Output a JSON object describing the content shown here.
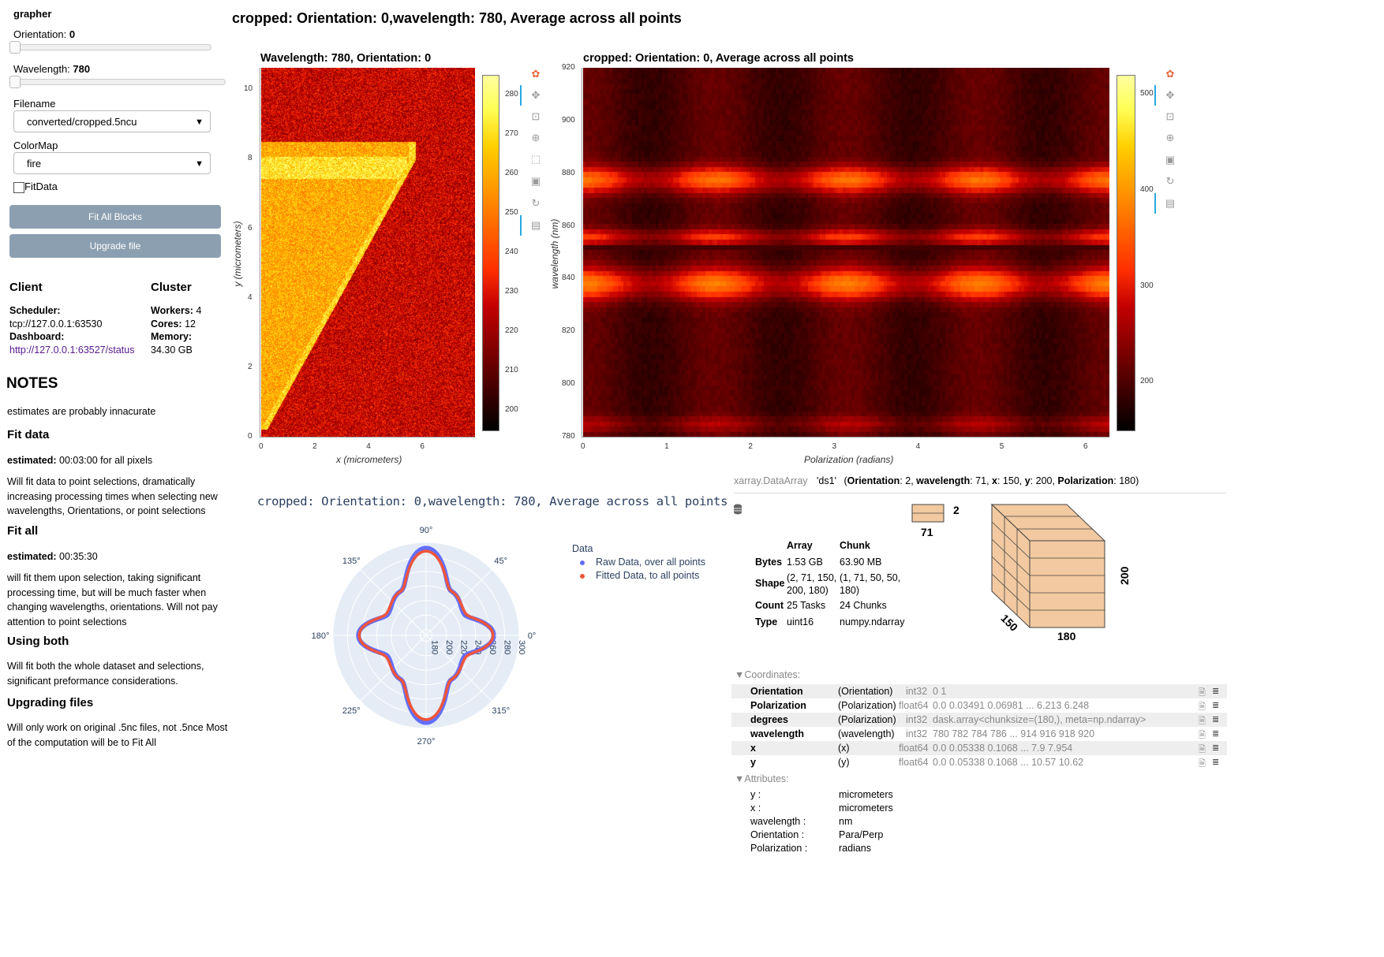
{
  "sidebar": {
    "title": "grapher",
    "orientation_label": "Orientation:",
    "orientation_value": "0",
    "wavelength_label": "Wavelength:",
    "wavelength_value": "780",
    "filename_label": "Filename",
    "filename_value": "converted/cropped.5ncu",
    "colormap_label": "ColorMap",
    "colormap_value": "fire",
    "fitdata_label": "FitData",
    "fit_all_button": "Fit All Blocks",
    "upgrade_button": "Upgrade file"
  },
  "client": {
    "client_header": "Client",
    "cluster_header": "Cluster",
    "scheduler_label": "Scheduler:",
    "scheduler_value": "tcp://127.0.0.1:63530",
    "dashboard_label": "Dashboard:",
    "dashboard_link": "http://127.0.0.1:63527/status",
    "workers_label": "Workers:",
    "workers_value": "4",
    "cores_label": "Cores:",
    "cores_value": "12",
    "memory_label": "Memory:",
    "memory_value": "34.30 GB"
  },
  "notes": {
    "heading": "NOTES",
    "intro": "estimates are probably innacurate",
    "fit_data_h": "Fit data",
    "fit_data_est_label": "estimated:",
    "fit_data_est": "00:03:00 for all pixels",
    "fit_data_text": "Will fit data to point selections, dramatically increasing processing times when selecting new wavelengths, Orientations, or point selections",
    "fit_all_h": "Fit all",
    "fit_all_est_label": "estimated:",
    "fit_all_est": "00:35:30",
    "fit_all_text": "will fit them upon selection, taking significant processing time, but will be much faster when changing wavelengths, orientations. Will not pay attention to point selections",
    "using_both_h": "Using both",
    "using_both_text": "Will fit both the whole dataset and selections, significant preformance considerations.",
    "upgrading_h": "Upgrading files",
    "upgrading_text": "Will only work on original .5nc files, not .5nce Most of the computation will be to Fit All"
  },
  "main_title": "cropped: Orientation: 0,wavelength: 780, Average across all points",
  "plot1": {
    "title": "Wavelength: 780, Orientation: 0",
    "xlabel": "x (micrometers)",
    "ylabel": "y (micrometers)",
    "xticks": [
      "0",
      "2",
      "4",
      "6"
    ],
    "yticks": [
      "0",
      "2",
      "4",
      "6",
      "8",
      "10"
    ],
    "cbar_ticks": [
      "200",
      "210",
      "220",
      "230",
      "240",
      "250",
      "260",
      "270",
      "280"
    ]
  },
  "plot2": {
    "title": "cropped: Orientation: 0, Average across all points",
    "xlabel": "Polarization (radians)",
    "ylabel": "wavelength (nm)",
    "xticks": [
      "0",
      "1",
      "2",
      "3",
      "4",
      "5",
      "6"
    ],
    "yticks": [
      "780",
      "800",
      "820",
      "840",
      "860",
      "880",
      "900",
      "920"
    ],
    "cbar_ticks": [
      "200",
      "300",
      "400",
      "500"
    ]
  },
  "polar": {
    "title": "cropped: Orientation: 0,wavelength: 780, Average across all points",
    "angle_labels": [
      "90°",
      "45°",
      "0°",
      "315°",
      "270°",
      "225°",
      "180°",
      "135°"
    ],
    "radial_labels": [
      "180",
      "200",
      "220",
      "240",
      "260",
      "280",
      "300"
    ],
    "legend_title": "Data",
    "legend": [
      {
        "name": "Raw Data, over all points",
        "color": "#636efa"
      },
      {
        "name": "Fitted Data, to all points",
        "color": "#ef553b"
      }
    ]
  },
  "chart_data": [
    {
      "type": "heatmap",
      "title": "Wavelength: 780, Orientation: 0",
      "xlabel": "x (micrometers)",
      "ylabel": "y (micrometers)",
      "xlim": [
        0,
        7.954
      ],
      "ylim": [
        0,
        10.62
      ],
      "colorbar_range": [
        195,
        285
      ],
      "colormap": "fire"
    },
    {
      "type": "heatmap",
      "title": "cropped: Orientation: 0, Average across all points",
      "xlabel": "Polarization (radians)",
      "ylabel": "wavelength (nm)",
      "xlim": [
        0,
        6.283
      ],
      "ylim": [
        780,
        920
      ],
      "colorbar_range": [
        150,
        520
      ],
      "colormap": "fire"
    },
    {
      "type": "line",
      "title": "cropped: Orientation: 0,wavelength: 780, Average across all points",
      "polar": true,
      "radial_range": [
        180,
        300
      ],
      "theta_deg": [
        0,
        30,
        60,
        90,
        120,
        150,
        180,
        210,
        240,
        270,
        300,
        330
      ],
      "series": [
        {
          "name": "Raw Data, over all points",
          "r": [
            265,
            232,
            242,
            292,
            242,
            232,
            265,
            232,
            242,
            292,
            242,
            232
          ]
        },
        {
          "name": "Fitted Data, to all points",
          "r": [
            264,
            234,
            242,
            288,
            242,
            234,
            264,
            234,
            242,
            288,
            242,
            234
          ]
        }
      ]
    }
  ],
  "xarray": {
    "header_type": "xarray.DataArray",
    "header_name": "'ds1'",
    "dims_text": "(Orientation: 2, wavelength: 71, x: 150, y: 200, Polarization: 180)",
    "col_array": "Array",
    "col_chunk": "Chunk",
    "rows": [
      {
        "label": "Bytes",
        "array": "1.53 GB",
        "chunk": "63.90 MB"
      },
      {
        "label": "Shape",
        "array": "(2, 71, 150, 200, 180)",
        "chunk": "(1, 71, 50, 50, 180)"
      },
      {
        "label": "Count",
        "array": "25 Tasks",
        "chunk": "24 Chunks"
      },
      {
        "label": "Type",
        "array": "uint16",
        "chunk": "numpy.ndarray"
      }
    ],
    "cube_labels": {
      "small_side": "2",
      "small_bottom": "71",
      "depth": "150",
      "width": "180",
      "height": "200"
    },
    "coordinates_label": "▼Coordinates:",
    "coordinates": [
      {
        "name": "Orientation",
        "dim": "(Orientation)",
        "dtype": "int32",
        "values": "0 1"
      },
      {
        "name": "Polarization",
        "dim": "(Polarization)",
        "dtype": "float64",
        "values": "0.0 0.03491 0.06981 ... 6.213 6.248"
      },
      {
        "name": "degrees",
        "dim": "(Polarization)",
        "dtype": "int32",
        "values": "dask.array<chunksize=(180,), meta=np.ndarray>"
      },
      {
        "name": "wavelength",
        "dim": "(wavelength)",
        "dtype": "int32",
        "values": "780 782 784 786 ... 914 916 918 920"
      },
      {
        "name": "x",
        "dim": "(x)",
        "dtype": "float64",
        "values": "0.0 0.05338 0.1068 ... 7.9 7.954"
      },
      {
        "name": "y",
        "dim": "(y)",
        "dtype": "float64",
        "values": "0.0 0.05338 0.1068 ... 10.57 10.62"
      }
    ],
    "attributes_label": "▼Attributes:",
    "attributes": [
      {
        "key": "y :",
        "value": "micrometers"
      },
      {
        "key": "x :",
        "value": "micrometers"
      },
      {
        "key": "wavelength :",
        "value": "nm"
      },
      {
        "key": "Orientation :",
        "value": "Para/Perp"
      },
      {
        "key": "Polarization :",
        "value": "radians"
      }
    ]
  }
}
